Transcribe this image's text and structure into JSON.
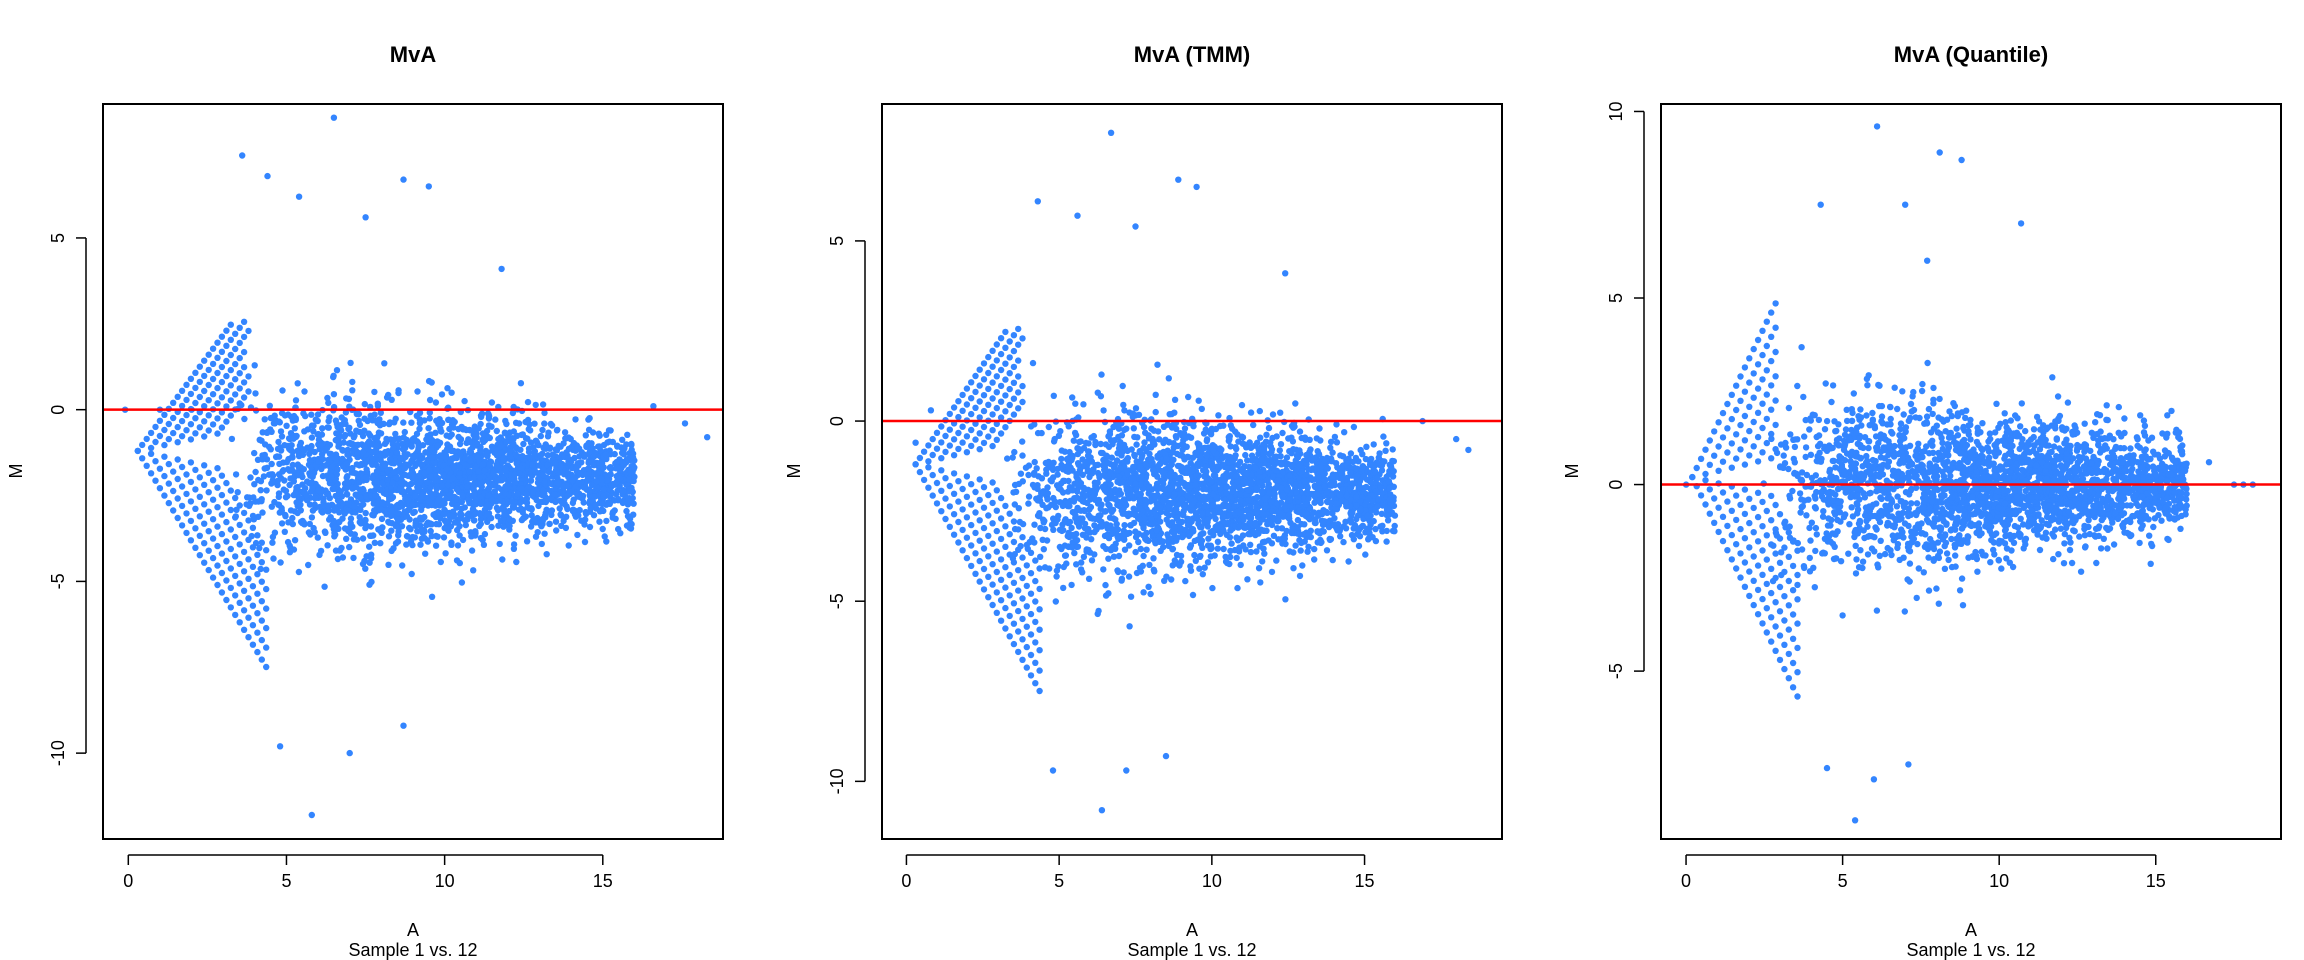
{
  "chart_data": [
    {
      "type": "scatter",
      "title": "MvA",
      "xlabel": "A",
      "sublabel": "Sample 1 vs. 12",
      "ylabel": "M",
      "xlim": [
        -0.8,
        18.8
      ],
      "ylim": [
        -12.5,
        8.9
      ],
      "xticks": [
        0,
        5,
        10,
        15
      ],
      "yticks": [
        -10,
        -5,
        0,
        5
      ],
      "point_color": "#3385ff",
      "line_color": "#ff0000",
      "hline": 0,
      "cloud": {
        "center_m": -2.0,
        "spread": 1.0,
        "a_start": 3.2,
        "a_end": 14.5,
        "a_peak": 6.5,
        "n_points": 2600
      },
      "diagonals": {
        "a_origin": 0.3,
        "m_origin": -1.2,
        "slope_up": 1.25,
        "slope_down": -1.55,
        "n_lines": 7
      },
      "outliers": [
        [
          6.5,
          8.5
        ],
        [
          3.6,
          7.4
        ],
        [
          4.4,
          6.8
        ],
        [
          5.4,
          6.2
        ],
        [
          8.7,
          6.7
        ],
        [
          9.5,
          6.5
        ],
        [
          7.5,
          5.6
        ],
        [
          11.8,
          4.1
        ],
        [
          5.8,
          -11.8
        ],
        [
          7.0,
          -10.0
        ],
        [
          4.8,
          -9.8
        ],
        [
          8.7,
          -9.2
        ],
        [
          16.6,
          0.1
        ],
        [
          17.6,
          -0.4
        ],
        [
          18.3,
          -0.8
        ],
        [
          15.9,
          -1.0
        ],
        [
          -0.1,
          0.0
        ],
        [
          1.0,
          0.0
        ],
        [
          2.0,
          0.0
        ]
      ]
    },
    {
      "type": "scatter",
      "title": "MvA (TMM)",
      "xlabel": "A",
      "sublabel": "Sample 1 vs. 12",
      "ylabel": "M",
      "xlim": [
        -0.8,
        19.5
      ],
      "ylim": [
        -11.6,
        8.8
      ],
      "xticks": [
        0,
        5,
        10,
        15
      ],
      "yticks": [
        -10,
        -5,
        0,
        5
      ],
      "point_color": "#3385ff",
      "line_color": "#ff0000",
      "hline": 0,
      "cloud": {
        "center_m": -2.0,
        "spread": 1.0,
        "a_start": 3.2,
        "a_end": 14.5,
        "a_peak": 6.5,
        "n_points": 2600
      },
      "diagonals": {
        "a_origin": 0.3,
        "m_origin": -1.2,
        "slope_up": 1.25,
        "slope_down": -1.55,
        "n_lines": 7
      },
      "outliers": [
        [
          6.7,
          8.0
        ],
        [
          4.3,
          6.1
        ],
        [
          8.9,
          6.7
        ],
        [
          9.5,
          6.5
        ],
        [
          5.6,
          5.7
        ],
        [
          7.5,
          5.4
        ],
        [
          12.4,
          4.1
        ],
        [
          6.4,
          -10.8
        ],
        [
          7.2,
          -9.7
        ],
        [
          4.8,
          -9.7
        ],
        [
          8.5,
          -9.3
        ],
        [
          16.9,
          0.0
        ],
        [
          18.0,
          -0.5
        ],
        [
          18.4,
          -0.8
        ],
        [
          0.3,
          -0.6
        ],
        [
          0.8,
          0.3
        ]
      ]
    },
    {
      "type": "scatter",
      "title": "MvA (Quantile)",
      "xlabel": "A",
      "sublabel": "Sample 1 vs. 12",
      "ylabel": "M",
      "xlim": [
        -0.8,
        19.0
      ],
      "ylim": [
        -9.5,
        10.2
      ],
      "xticks": [
        0,
        5,
        10,
        15
      ],
      "yticks": [
        -5,
        0,
        5,
        10
      ],
      "point_color": "#3385ff",
      "line_color": "#ff0000",
      "hline": 0,
      "cloud": {
        "center_m": 0.0,
        "spread": 1.0,
        "a_start": 2.4,
        "a_end": 14.5,
        "a_peak": 6.0,
        "n_points": 2600
      },
      "diagonals": {
        "a_origin": 0.2,
        "m_origin": 0.2,
        "slope_up": 1.75,
        "slope_down": -1.75,
        "n_lines": 7
      },
      "outliers": [
        [
          6.1,
          9.6
        ],
        [
          8.1,
          8.9
        ],
        [
          8.8,
          8.7
        ],
        [
          7.0,
          7.5
        ],
        [
          4.3,
          7.5
        ],
        [
          10.7,
          7.0
        ],
        [
          7.7,
          6.0
        ],
        [
          5.4,
          -9.0
        ],
        [
          6.0,
          -7.9
        ],
        [
          7.1,
          -7.5
        ],
        [
          4.5,
          -7.6
        ],
        [
          17.5,
          0.0
        ],
        [
          17.8,
          0.0
        ],
        [
          18.1,
          0.0
        ],
        [
          16.7,
          0.6
        ],
        [
          15.8,
          0.9
        ],
        [
          0.0,
          0.0
        ]
      ]
    }
  ]
}
